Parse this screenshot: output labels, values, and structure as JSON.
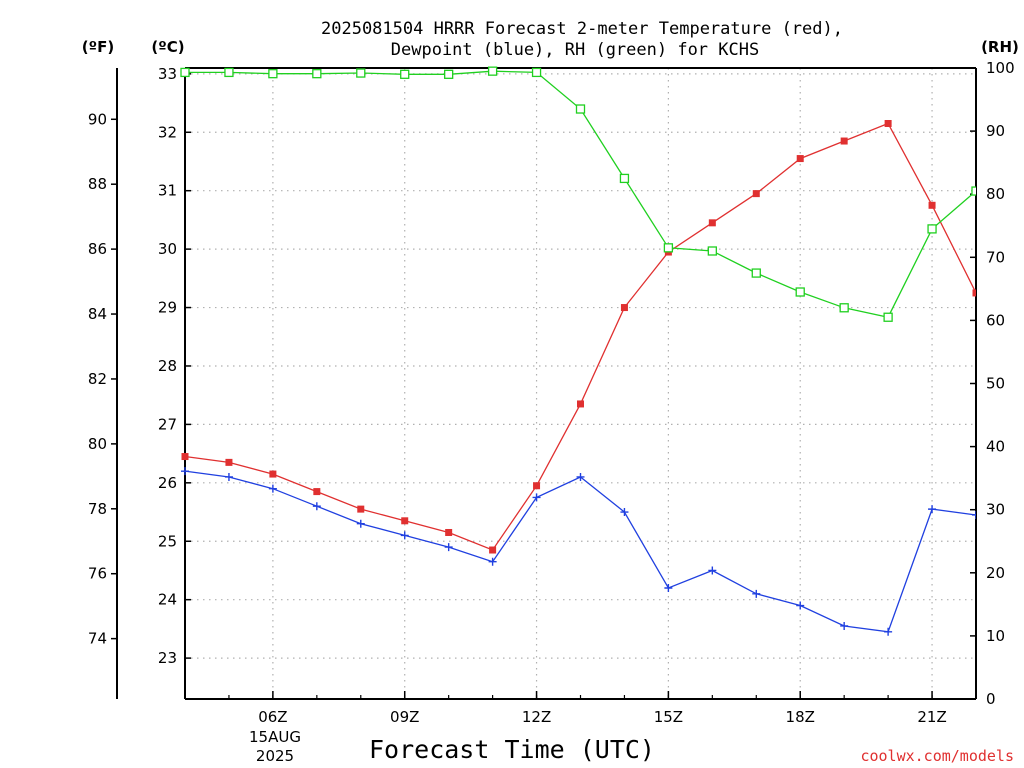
{
  "chart_data": {
    "type": "line",
    "title_lines": [
      "2025081504 HRRR Forecast 2-meter Temperature (red),",
      "Dewpoint (blue), RH (green) for KCHS"
    ],
    "left_outer_unit": "(ºF)",
    "left_inner_unit": "(ºC)",
    "right_unit": "(RH)",
    "xlabel": "Forecast Time (UTC)",
    "date_label": [
      "15AUG",
      "2025"
    ],
    "credit": "coolwx.com/models",
    "x_hours": [
      4,
      5,
      6,
      7,
      8,
      9,
      10,
      11,
      12,
      13,
      14,
      15,
      16,
      17,
      18,
      19,
      20,
      21,
      22
    ],
    "x_ticks": [
      {
        "hour": 6,
        "label": "06Z"
      },
      {
        "hour": 9,
        "label": "09Z"
      },
      {
        "hour": 12,
        "label": "12Z"
      },
      {
        "hour": 15,
        "label": "15Z"
      },
      {
        "hour": 18,
        "label": "18Z"
      },
      {
        "hour": 21,
        "label": "21Z"
      }
    ],
    "xlim": [
      4,
      22
    ],
    "celsius_ylim": [
      22.3,
      33.1
    ],
    "celsius_ticks": [
      23,
      24,
      25,
      26,
      27,
      28,
      29,
      30,
      31,
      32,
      33
    ],
    "fahrenheit_ticks": [
      74,
      76,
      78,
      80,
      82,
      84,
      86,
      88,
      90
    ],
    "rh_ylim": [
      0,
      100
    ],
    "rh_ticks": [
      0,
      10,
      20,
      30,
      40,
      50,
      60,
      70,
      80,
      90,
      100
    ],
    "grid": true,
    "series": [
      {
        "name": "Temperature",
        "color": "#e03030",
        "marker": "filled-square",
        "axis": "celsius",
        "values": [
          26.45,
          26.35,
          26.15,
          25.85,
          25.55,
          25.35,
          25.15,
          24.85,
          25.95,
          27.35,
          29.0,
          29.95,
          30.45,
          30.95,
          31.55,
          31.85,
          32.15,
          30.75,
          29.25
        ]
      },
      {
        "name": "Dewpoint",
        "color": "#2040e0",
        "marker": "plus",
        "axis": "celsius",
        "values": [
          26.2,
          26.1,
          25.9,
          25.6,
          25.3,
          25.1,
          24.9,
          24.65,
          25.75,
          26.1,
          25.5,
          24.2,
          24.5,
          24.1,
          23.9,
          23.55,
          23.45,
          25.55,
          25.45
        ]
      },
      {
        "name": "RH",
        "color": "#20d020",
        "marker": "open-square",
        "axis": "rh",
        "values": [
          99.3,
          99.3,
          99.1,
          99.1,
          99.2,
          99.0,
          99.0,
          99.5,
          99.3,
          93.5,
          82.5,
          71.5,
          71.0,
          67.5,
          64.5,
          62.0,
          60.5,
          74.5,
          80.5
        ]
      }
    ]
  }
}
